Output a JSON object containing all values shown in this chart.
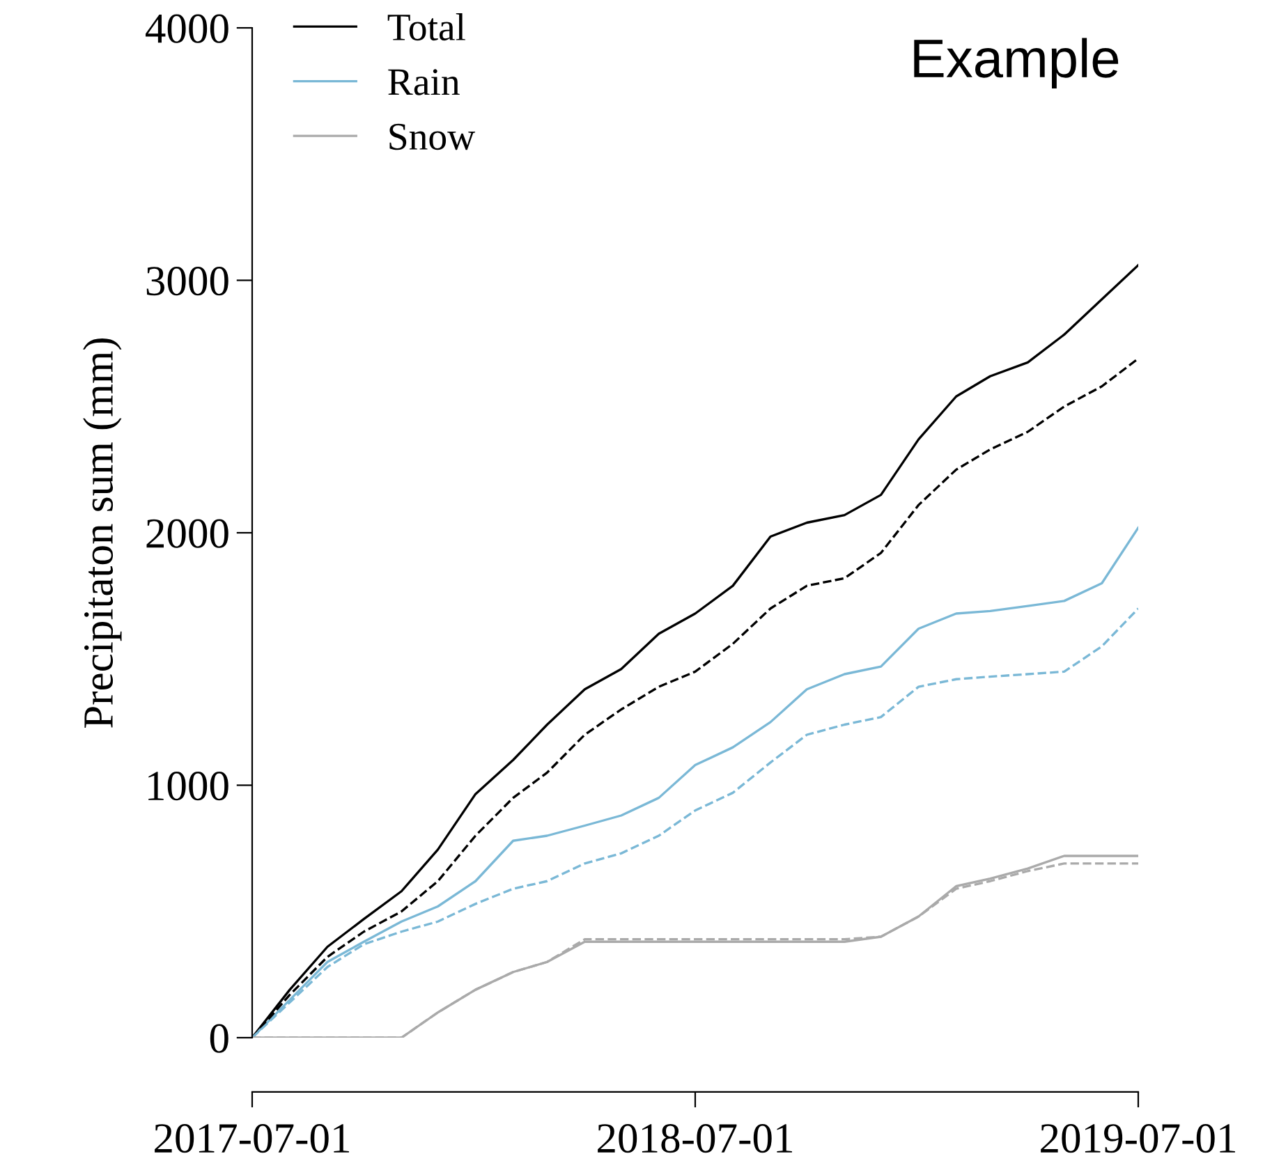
{
  "chart_data": {
    "type": "line",
    "ylabel": "Precipitaton sum (mm)",
    "annotations": [
      "Example"
    ],
    "x": [
      "2017-07-01",
      "2017-08-01",
      "2017-09-01",
      "2017-10-01",
      "2017-11-01",
      "2017-12-01",
      "2018-01-01",
      "2018-02-01",
      "2018-03-01",
      "2018-04-01",
      "2018-05-01",
      "2018-06-01",
      "2018-07-01",
      "2018-08-01",
      "2018-09-01",
      "2018-10-01",
      "2018-11-01",
      "2018-12-01",
      "2019-01-01",
      "2019-02-01",
      "2019-03-01",
      "2019-04-01",
      "2019-05-01",
      "2019-06-01",
      "2019-07-01"
    ],
    "series": [
      {
        "name": "Total",
        "color": "#000000",
        "line_style": "solid",
        "values": [
          0,
          190,
          360,
          470,
          580,
          745,
          965,
          1100,
          1240,
          1380,
          1460,
          1600,
          1680,
          1790,
          1985,
          2040,
          2070,
          2150,
          2370,
          2540,
          2620,
          2675,
          2785,
          2925,
          3060
        ]
      },
      {
        "name": "Rain",
        "color": "#7ab8d6",
        "line_style": "solid",
        "values": [
          0,
          150,
          300,
          380,
          460,
          520,
          620,
          780,
          800,
          840,
          880,
          950,
          1080,
          1150,
          1250,
          1380,
          1440,
          1470,
          1620,
          1680,
          1690,
          1710,
          1730,
          1800,
          2020
        ]
      },
      {
        "name": "Snow",
        "color": "#aaaaaa",
        "line_style": "solid",
        "values": [
          0,
          0,
          0,
          0,
          0,
          100,
          190,
          260,
          300,
          380,
          380,
          380,
          380,
          380,
          380,
          380,
          380,
          400,
          480,
          600,
          630,
          670,
          720,
          720,
          720
        ]
      },
      {
        "color": "#000000",
        "line_style": "dashed",
        "values": [
          0,
          170,
          320,
          420,
          500,
          620,
          800,
          950,
          1050,
          1200,
          1300,
          1390,
          1450,
          1560,
          1700,
          1790,
          1820,
          1920,
          2110,
          2250,
          2330,
          2400,
          2500,
          2580,
          2690
        ]
      },
      {
        "color": "#7ab8d6",
        "line_style": "dashed",
        "values": [
          0,
          140,
          280,
          370,
          420,
          460,
          530,
          590,
          620,
          690,
          730,
          800,
          900,
          970,
          1090,
          1200,
          1240,
          1270,
          1390,
          1420,
          1430,
          1440,
          1450,
          1550,
          1700
        ]
      },
      {
        "color": "#aaaaaa",
        "line_style": "dashed",
        "values": [
          0,
          0,
          0,
          0,
          0,
          100,
          190,
          260,
          300,
          390,
          390,
          390,
          390,
          390,
          390,
          390,
          390,
          400,
          480,
          590,
          620,
          660,
          690,
          690,
          690
        ]
      }
    ],
    "xlim": [
      "2017-07-01",
      "2019-07-01"
    ],
    "xticks": [
      "2017-07-01",
      "2018-07-01",
      "2019-07-01"
    ],
    "ylim": [
      0,
      4000
    ],
    "yticks": [
      0,
      1000,
      2000,
      3000,
      4000
    ],
    "grid": false,
    "legend": "top left"
  }
}
